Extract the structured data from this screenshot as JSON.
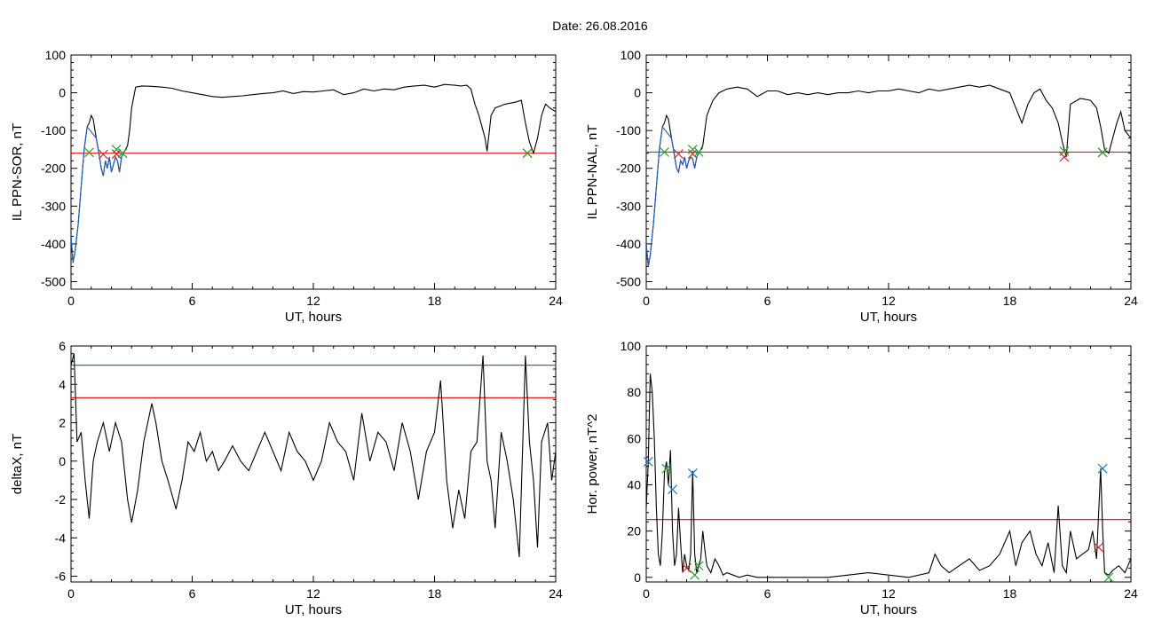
{
  "figure": {
    "title": "Date:  26.08.2016"
  },
  "chart_data": [
    {
      "type": "line",
      "title": "",
      "xlabel": "UT, hours",
      "ylabel": "IL PPN-SOR, nT",
      "xlim": [
        0,
        24
      ],
      "ylim": [
        -520,
        100
      ],
      "xticks": [
        0,
        6,
        12,
        18,
        24
      ],
      "yticks": [
        100,
        0,
        -100,
        -200,
        -300,
        -400,
        -500
      ],
      "grid": false,
      "thresholds": [
        {
          "value": -160,
          "color": "#e31a1c"
        }
      ],
      "series": [
        {
          "color": "#000000",
          "x": [
            0,
            0.1,
            0.2,
            0.35,
            0.5,
            0.65,
            0.8,
            0.9,
            1.0,
            1.1,
            1.25,
            1.35,
            1.5,
            1.6,
            1.7,
            1.8,
            1.9,
            2.0,
            2.1,
            2.2,
            2.3,
            2.4,
            2.5,
            2.6,
            2.7,
            2.8,
            2.9,
            3.0,
            3.2,
            3.5,
            4.0,
            4.5,
            5.0,
            5.5,
            6.0,
            6.5,
            7.0,
            7.5,
            8.0,
            8.5,
            9.0,
            9.5,
            10.0,
            10.5,
            11.0,
            11.5,
            12.0,
            12.5,
            13.0,
            13.5,
            14.0,
            14.5,
            15.0,
            15.5,
            16.0,
            16.5,
            17.0,
            17.5,
            18.0,
            18.5,
            19.0,
            19.3,
            19.6,
            19.8,
            20.0,
            20.2,
            20.4,
            20.5,
            20.6,
            20.8,
            21.0,
            21.5,
            22.0,
            22.3,
            22.5,
            22.7,
            22.9,
            23.1,
            23.3,
            23.5,
            23.7,
            24.0
          ],
          "y": [
            -380,
            -450,
            -420,
            -350,
            -250,
            -150,
            -90,
            -80,
            -60,
            -70,
            -120,
            -150,
            -200,
            -220,
            -180,
            -200,
            -170,
            -210,
            -190,
            -170,
            -180,
            -210,
            -170,
            -160,
            -150,
            -140,
            -100,
            -40,
            15,
            18,
            17,
            15,
            12,
            5,
            0,
            -5,
            -10,
            -12,
            -10,
            -8,
            -5,
            -2,
            0,
            5,
            -2,
            3,
            2,
            5,
            8,
            -5,
            0,
            10,
            5,
            10,
            8,
            15,
            18,
            20,
            15,
            22,
            20,
            18,
            20,
            10,
            -30,
            -60,
            -100,
            -120,
            -155,
            -60,
            -40,
            -30,
            -25,
            -20,
            -80,
            -130,
            -160,
            -120,
            -60,
            -30,
            -40,
            -50
          ]
        },
        {
          "color": "#1f5fbf",
          "x": [
            0,
            0.1,
            0.2,
            0.35,
            0.5,
            0.65,
            0.8,
            1.25,
            1.35,
            1.5,
            1.6,
            1.7,
            1.8,
            1.9,
            2.0,
            2.1,
            2.2,
            2.3,
            2.4,
            2.5,
            2.6,
            2.7
          ],
          "y": [
            -380,
            -450,
            -420,
            -350,
            -250,
            -150,
            -90,
            -120,
            -150,
            -200,
            -220,
            -180,
            -200,
            -170,
            -210,
            -190,
            -170,
            -180,
            -210,
            -170,
            -160,
            -150
          ]
        }
      ],
      "markers": [
        {
          "x": 0.9,
          "y": -158,
          "color": "#2ca02c"
        },
        {
          "x": 1.6,
          "y": -163,
          "color": "#d62728"
        },
        {
          "x": 2.25,
          "y": -150,
          "color": "#2ca02c"
        },
        {
          "x": 2.25,
          "y": -162,
          "color": "#d62728"
        },
        {
          "x": 2.55,
          "y": -160,
          "color": "#2ca02c"
        },
        {
          "x": 22.6,
          "y": -160,
          "color": "#d62728"
        },
        {
          "x": 22.6,
          "y": -160,
          "color": "#2ca02c"
        }
      ]
    },
    {
      "type": "line",
      "title": "",
      "xlabel": "UT, hours",
      "ylabel": "IL PPN-NAL, nT",
      "xlim": [
        0,
        24
      ],
      "ylim": [
        -520,
        100
      ],
      "xticks": [
        0,
        6,
        12,
        18,
        24
      ],
      "yticks": [
        100,
        0,
        -100,
        -200,
        -300,
        -400,
        -500
      ],
      "grid": false,
      "thresholds": [
        {
          "value": -157,
          "color": "#e31a1c"
        }
      ],
      "series": [
        {
          "color": "#000000",
          "x": [
            0,
            0.1,
            0.2,
            0.35,
            0.5,
            0.65,
            0.8,
            0.9,
            1.0,
            1.1,
            1.25,
            1.35,
            1.5,
            1.6,
            1.7,
            1.8,
            1.9,
            2.0,
            2.1,
            2.2,
            2.3,
            2.4,
            2.5,
            2.6,
            2.7,
            2.8,
            2.9,
            3.0,
            3.3,
            3.6,
            4.0,
            4.5,
            5.0,
            5.5,
            6.0,
            6.5,
            7.0,
            7.5,
            8.0,
            8.5,
            9.0,
            9.5,
            10.0,
            10.5,
            11.0,
            11.5,
            12.0,
            12.5,
            13.0,
            13.5,
            14.0,
            14.5,
            15.0,
            15.5,
            16.0,
            16.5,
            17.0,
            17.5,
            18.0,
            18.3,
            18.6,
            18.9,
            19.2,
            19.5,
            19.8,
            20.1,
            20.4,
            20.6,
            20.8,
            21.0,
            21.5,
            22.0,
            22.3,
            22.5,
            22.7,
            22.9,
            23.1,
            23.3,
            23.5,
            23.7,
            24.0
          ],
          "y": [
            -400,
            -460,
            -430,
            -350,
            -250,
            -150,
            -90,
            -80,
            -60,
            -70,
            -120,
            -150,
            -200,
            -210,
            -180,
            -190,
            -170,
            -200,
            -180,
            -170,
            -175,
            -200,
            -170,
            -160,
            -150,
            -140,
            -100,
            -60,
            -20,
            0,
            10,
            15,
            10,
            -10,
            5,
            5,
            -5,
            0,
            -5,
            0,
            -5,
            0,
            0,
            5,
            0,
            5,
            5,
            10,
            5,
            0,
            10,
            5,
            10,
            15,
            20,
            15,
            20,
            10,
            0,
            -40,
            -80,
            -30,
            0,
            10,
            -20,
            -40,
            -80,
            -130,
            -170,
            -30,
            -15,
            -20,
            -40,
            -90,
            -150,
            -160,
            -120,
            -80,
            -50,
            -100,
            -120
          ]
        },
        {
          "color": "#1f5fbf",
          "x": [
            0,
            0.1,
            0.2,
            0.35,
            0.5,
            0.65,
            0.8,
            1.25,
            1.35,
            1.5,
            1.6,
            1.7,
            1.8,
            1.9,
            2.0,
            2.1,
            2.2,
            2.3,
            2.4,
            2.5,
            2.6,
            2.7
          ],
          "y": [
            -400,
            -460,
            -430,
            -350,
            -250,
            -150,
            -90,
            -120,
            -150,
            -200,
            -210,
            -180,
            -190,
            -170,
            -200,
            -180,
            -170,
            -175,
            -200,
            -170,
            -160,
            -150
          ]
        }
      ],
      "markers": [
        {
          "x": 0.9,
          "y": -157,
          "color": "#2ca02c"
        },
        {
          "x": 1.6,
          "y": -162,
          "color": "#d62728"
        },
        {
          "x": 2.3,
          "y": -150,
          "color": "#2ca02c"
        },
        {
          "x": 2.3,
          "y": -162,
          "color": "#d62728"
        },
        {
          "x": 2.6,
          "y": -157,
          "color": "#2ca02c"
        },
        {
          "x": 20.7,
          "y": -170,
          "color": "#d62728"
        },
        {
          "x": 20.7,
          "y": -155,
          "color": "#2ca02c"
        },
        {
          "x": 22.6,
          "y": -158,
          "color": "#d62728"
        },
        {
          "x": 22.6,
          "y": -158,
          "color": "#2ca02c"
        }
      ]
    },
    {
      "type": "line",
      "title": "",
      "xlabel": "UT, hours",
      "ylabel": "deltaX, nT",
      "xlim": [
        0,
        24
      ],
      "ylim": [
        -6.3,
        6
      ],
      "xticks": [
        0,
        6,
        12,
        18,
        24
      ],
      "yticks": [
        6,
        4,
        2,
        0,
        -2,
        -4,
        -6
      ],
      "grid": false,
      "thresholds": [
        {
          "value": 5.0,
          "color": "#1f77b4"
        },
        {
          "value": 3.3,
          "color": "#e31a1c"
        }
      ],
      "series": [
        {
          "color": "#000000",
          "x": [
            0,
            0.15,
            0.3,
            0.5,
            0.7,
            0.9,
            1.1,
            1.3,
            1.6,
            1.9,
            2.2,
            2.5,
            2.8,
            3.0,
            3.3,
            3.6,
            4.0,
            4.2,
            4.5,
            4.8,
            5.2,
            5.5,
            5.8,
            6.1,
            6.4,
            6.7,
            7.0,
            7.3,
            7.6,
            8.0,
            8.4,
            8.8,
            9.2,
            9.6,
            10.0,
            10.4,
            10.8,
            11.2,
            11.6,
            12.0,
            12.4,
            12.8,
            13.2,
            13.6,
            14.0,
            14.4,
            14.8,
            15.2,
            15.6,
            16.0,
            16.4,
            16.8,
            17.2,
            17.6,
            18.0,
            18.3,
            18.6,
            18.9,
            19.2,
            19.5,
            19.8,
            20.1,
            20.4,
            20.6,
            20.8,
            21.0,
            21.3,
            21.6,
            21.9,
            22.2,
            22.5,
            22.7,
            22.9,
            23.1,
            23.3,
            23.6,
            23.8,
            24.0
          ],
          "y": [
            5.0,
            5.6,
            1.0,
            1.5,
            -1.0,
            -3.0,
            0.0,
            1.0,
            2.0,
            0.5,
            2.0,
            1.0,
            -2.0,
            -3.2,
            -1.5,
            1.0,
            3.0,
            2.0,
            0.0,
            -1.0,
            -2.5,
            -1.0,
            1.0,
            0.5,
            1.5,
            0.0,
            0.5,
            -0.5,
            0.0,
            0.8,
            0.0,
            -0.5,
            0.5,
            1.5,
            0.5,
            -0.5,
            1.5,
            0.5,
            0.0,
            -1.0,
            0.0,
            2.0,
            1.0,
            0.5,
            -1.0,
            2.5,
            0.0,
            1.5,
            1.0,
            -0.5,
            2.0,
            0.5,
            -2.0,
            0.5,
            1.5,
            4.2,
            -1.0,
            -3.5,
            -1.5,
            -3.0,
            0.5,
            1.0,
            5.5,
            0.0,
            -1.0,
            -3.5,
            1.5,
            0.0,
            -2.0,
            -5.0,
            5.5,
            1.0,
            -1.0,
            -4.5,
            1.0,
            2.0,
            -1.0,
            0.5
          ]
        }
      ],
      "markers": []
    },
    {
      "type": "line",
      "title": "",
      "xlabel": "UT, hours",
      "ylabel": "Hor. power, nT^2",
      "xlim": [
        0,
        24
      ],
      "ylim": [
        -2,
        100
      ],
      "xticks": [
        0,
        6,
        12,
        18,
        24
      ],
      "yticks": [
        100,
        80,
        60,
        40,
        20,
        0
      ],
      "grid": false,
      "thresholds": [
        {
          "value": 25,
          "color": "#e31a1c"
        }
      ],
      "series": [
        {
          "color": "#000000",
          "x": [
            0,
            0.1,
            0.2,
            0.3,
            0.4,
            0.5,
            0.6,
            0.7,
            0.8,
            0.9,
            1.0,
            1.1,
            1.2,
            1.3,
            1.4,
            1.5,
            1.6,
            1.7,
            1.8,
            1.9,
            2.0,
            2.1,
            2.2,
            2.3,
            2.4,
            2.5,
            2.6,
            2.7,
            2.8,
            2.9,
            3.0,
            3.2,
            3.4,
            3.6,
            3.8,
            4.0,
            4.3,
            4.6,
            5.0,
            5.5,
            6.0,
            7.0,
            8.0,
            9.0,
            10.0,
            11.0,
            12.0,
            13.0,
            14.0,
            14.3,
            14.6,
            15.0,
            15.5,
            16.0,
            16.5,
            17.0,
            17.5,
            18.0,
            18.3,
            18.6,
            19.0,
            19.3,
            19.6,
            19.9,
            20.2,
            20.4,
            20.6,
            20.8,
            21.0,
            21.3,
            21.6,
            21.9,
            22.1,
            22.3,
            22.5,
            22.6,
            22.7,
            22.9,
            23.1,
            23.4,
            23.7,
            24.0
          ],
          "y": [
            30,
            50,
            88,
            80,
            60,
            30,
            10,
            5,
            20,
            45,
            50,
            40,
            55,
            20,
            5,
            10,
            30,
            15,
            2,
            10,
            5,
            3,
            10,
            46,
            10,
            2,
            5,
            8,
            20,
            12,
            5,
            2,
            8,
            5,
            1,
            2,
            1,
            0,
            1,
            0,
            0,
            0,
            0,
            0,
            1,
            2,
            1,
            0,
            2,
            10,
            5,
            2,
            5,
            8,
            3,
            5,
            10,
            20,
            5,
            15,
            20,
            10,
            5,
            15,
            2,
            31,
            5,
            2,
            20,
            8,
            10,
            12,
            20,
            8,
            47,
            20,
            2,
            1,
            3,
            5,
            2,
            8
          ]
        }
      ],
      "markers": [
        {
          "x": 0.1,
          "y": 50,
          "color": "#1f77b4"
        },
        {
          "x": 1.0,
          "y": 47,
          "color": "#2ca02c"
        },
        {
          "x": 1.3,
          "y": 38,
          "color": "#1f77b4"
        },
        {
          "x": 2.0,
          "y": 4,
          "color": "#d62728"
        },
        {
          "x": 2.3,
          "y": 45,
          "color": "#1f77b4"
        },
        {
          "x": 2.4,
          "y": 1,
          "color": "#2ca02c"
        },
        {
          "x": 2.6,
          "y": 5,
          "color": "#2ca02c"
        },
        {
          "x": 22.4,
          "y": 13,
          "color": "#d62728"
        },
        {
          "x": 22.6,
          "y": 47,
          "color": "#1f77b4"
        },
        {
          "x": 22.9,
          "y": 0,
          "color": "#2ca02c"
        }
      ]
    }
  ]
}
